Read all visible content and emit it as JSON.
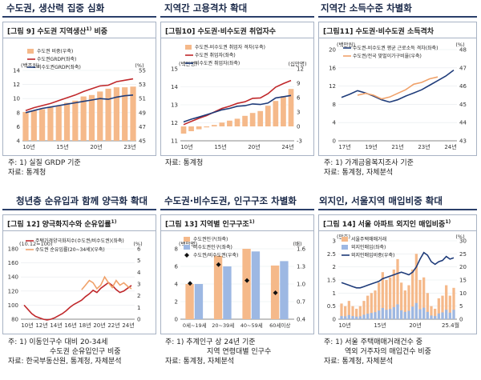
{
  "headings": [
    {
      "text": "수도권, 생산력 집중 심화"
    },
    {
      "text": "지역간 고용격차 확대"
    },
    {
      "text": "지역간 소득수준 차별화"
    },
    {
      "text": "청년층 순유입과 함께 양극화 확대"
    },
    {
      "text": "수도권·비수도권, 인구구조 차별화"
    },
    {
      "text": "외지인, 서울지역 매입비중 확대"
    }
  ],
  "panels": [
    {
      "title": "[그림 9] 수도권 지역생산",
      "title_sup": "1)",
      "title_suffix": " 비중"
    },
    {
      "title": "[그림10] 수도권·비수도권 취업자수",
      "title_sup": "",
      "title_suffix": ""
    },
    {
      "title": "[그림11] 수도권·비수도권 소득격차",
      "title_sup": "",
      "title_suffix": ""
    },
    {
      "title": "[그림 12] 양극화지수와 순유입률",
      "title_sup": "1)",
      "title_suffix": ""
    },
    {
      "title": "[그림 13] 지역별 인구구조",
      "title_sup": "1)",
      "title_suffix": ""
    },
    {
      "title": "[그림 14] 서울 아파트 외지인 매입비중",
      "title_sup": "1)",
      "title_suffix": ""
    }
  ],
  "notes": [
    [
      "주: 1) 실질 GRDP 기준",
      "자료: 통계청"
    ],
    [
      "자료: 통계청"
    ],
    [
      "주: 1) 가계금융복지조사 기준",
      "자료: 통계청, 자체분석"
    ],
    [
      "주: 1) 이동인구수 대비 20-34세",
      "수도권 순유입인구 비중",
      "자료: 한국부동산원, 통계청, 자체분석"
    ],
    [
      "주: 1) 추계인구 상 24년 기준",
      "지역 연령대별 인구수",
      "자료: 통계청, 자체분석"
    ],
    [
      "주: 1) 서울 주택매매거래건수 중",
      "역외 거주자의 매입건수 비중",
      "자료: 통계청, 자체분석"
    ]
  ],
  "chart_data": [
    {
      "type": "bar",
      "left_unit": "(백조원)",
      "right_unit": "(%)",
      "legend": [
        "수도권 비중(우축)",
        "수도권GRDP(좌축)",
        "비수도권GRDP(좌축)"
      ],
      "ylim_left": [
        4,
        14
      ],
      "yticks_left": [
        "4",
        "6",
        "8",
        "10",
        "12",
        "14"
      ],
      "ylim_right": [
        45,
        55
      ],
      "yticks_right": [
        "45",
        "47",
        "49",
        "51",
        "53",
        "55"
      ],
      "xticks": [
        "10년",
        "15년",
        "20년",
        "23년"
      ],
      "x": [
        2010,
        2011,
        2012,
        2013,
        2014,
        2015,
        2016,
        2017,
        2018,
        2019,
        2020,
        2021,
        2022,
        2023
      ],
      "series": [
        {
          "name": "수도권 비중(우축)",
          "axis": "right",
          "kind": "bar",
          "color": "#f5b98a",
          "values": [
            49.1,
            49.3,
            49.5,
            49.8,
            50.0,
            50.4,
            50.7,
            51.3,
            51.5,
            52.0,
            52.4,
            52.6,
            52.6,
            52.7
          ]
        },
        {
          "name": "수도권GRDP(좌축)",
          "axis": "left",
          "kind": "line",
          "color": "#c0282b",
          "values": [
            8.3,
            8.7,
            9.0,
            9.3,
            9.7,
            10.1,
            10.5,
            11.0,
            11.4,
            11.8,
            11.9,
            12.4,
            12.6,
            12.8
          ]
        },
        {
          "name": "비수도권GRDP(좌축)",
          "axis": "left",
          "kind": "line",
          "color": "#1f3c7a",
          "values": [
            8.0,
            8.3,
            8.6,
            8.8,
            9.0,
            9.2,
            9.4,
            9.6,
            9.8,
            10.0,
            9.9,
            10.2,
            10.4,
            10.5
          ]
        }
      ]
    },
    {
      "type": "line",
      "left_unit": "(백만명)",
      "right_unit": "(십만명)",
      "legend": [
        "수도권-비수도권 취업자 격차(우축)",
        "수도권 취업자(좌축)",
        "비수도권 취업자(좌축)"
      ],
      "ylim_left": [
        11,
        15
      ],
      "yticks_left": [
        "11",
        "12",
        "13",
        "14",
        "15"
      ],
      "ylim_right": [
        -3,
        12
      ],
      "yticks_right": [
        "-3",
        "0",
        "3",
        "6",
        "9",
        "12"
      ],
      "xticks": [
        "10년",
        "15년",
        "20년",
        "24년"
      ],
      "x": [
        2010,
        2011,
        2012,
        2013,
        2014,
        2015,
        2016,
        2017,
        2018,
        2019,
        2020,
        2021,
        2022,
        2023,
        2024
      ],
      "series": [
        {
          "name": "수도권-비수도권 취업자 격차(우축)",
          "axis": "right",
          "kind": "bar",
          "color": "#f5b98a",
          "values": [
            -1.5,
            -1.0,
            -0.6,
            -0.2,
            0.3,
            0.8,
            1.2,
            1.6,
            2.2,
            2.8,
            3.2,
            4.3,
            5.3,
            6.3,
            7.8
          ]
        },
        {
          "name": "수도권 취업자(좌축)",
          "axis": "left",
          "kind": "line",
          "color": "#c0282b",
          "values": [
            11.9,
            12.08,
            12.25,
            12.4,
            12.6,
            12.8,
            12.92,
            13.08,
            13.17,
            13.36,
            13.38,
            13.62,
            13.98,
            14.18,
            14.35
          ]
        },
        {
          "name": "비수도권 취업자(좌축)",
          "axis": "left",
          "kind": "line",
          "color": "#1f3c7a",
          "values": [
            12.05,
            12.2,
            12.32,
            12.45,
            12.58,
            12.72,
            12.8,
            12.92,
            12.95,
            13.05,
            13.02,
            13.1,
            13.38,
            13.45,
            13.52
          ]
        }
      ]
    },
    {
      "type": "line",
      "left_unit": "(백만원)",
      "right_unit": "(%)",
      "legend": [
        "수도권-비수도권 평균 근로소득 격차(좌축)",
        "수도권/전국 맞벌이가구비율(우축)"
      ],
      "ylim_left": [
        0,
        20
      ],
      "yticks_left": [
        "0",
        "4",
        "8",
        "12",
        "16",
        "20"
      ],
      "ylim_right": [
        43,
        48
      ],
      "yticks_right": [
        "43",
        "44",
        "45",
        "46",
        "47",
        "48"
      ],
      "xticks": [
        "17년",
        "19년",
        "21년",
        "23년",
        "24년"
      ],
      "x": [
        2017,
        2017.5,
        2018,
        2018.5,
        2019,
        2019.5,
        2020,
        2020.5,
        2021,
        2021.5,
        2022,
        2022.5,
        2023,
        2023.5,
        2024
      ],
      "series": [
        {
          "name": "수도권-비수도권 평균 근로소득 격차(좌축)",
          "axis": "left",
          "kind": "line",
          "color": "#1f3c7a",
          "values": [
            9.5,
            10.2,
            11.0,
            10.5,
            9.8,
            9.0,
            8.5,
            9.0,
            9.8,
            10.5,
            11.2,
            12.2,
            13.2,
            14.2,
            15.5
          ]
        },
        {
          "name": "수도권/전국 맞벌이가구비율(우축)",
          "axis": "right",
          "kind": "line",
          "color": "#f0a26a",
          "values": [
            null,
            null,
            45.5,
            45.6,
            45.5,
            45.3,
            45.4,
            45.6,
            45.8,
            46.1,
            46.2,
            46.4,
            46.5,
            null,
            null
          ]
        }
      ]
    },
    {
      "type": "line",
      "left_unit": "(10.12=100)",
      "right_unit": "(%)",
      "legend": [
        "주택가격양극화지수(수도권/비수도권)(좌축)",
        "수도권 순유입률(20~34세)(우축)"
      ],
      "ylim_left": [
        80,
        180
      ],
      "yticks_left": [
        "80",
        "100",
        "120",
        "140",
        "160",
        "180"
      ],
      "ylim_right": [
        0,
        6
      ],
      "yticks_right": [
        "0",
        "1",
        "2",
        "3",
        "4",
        "5",
        "6"
      ],
      "xticks": [
        "10년",
        "12년",
        "14년",
        "16년",
        "18년",
        "20년",
        "22년",
        "24년"
      ],
      "x": [
        2010,
        2010.5,
        2011,
        2011.5,
        2012,
        2012.5,
        2013,
        2013.5,
        2014,
        2014.5,
        2015,
        2015.5,
        2016,
        2016.5,
        2017,
        2017.5,
        2018,
        2018.5,
        2019,
        2019.5,
        2020,
        2020.5,
        2021,
        2021.5,
        2022,
        2022.5,
        2023,
        2023.5,
        2024
      ],
      "series": [
        {
          "name": "주택가격양극화지수(수도권/비수도권)(좌축)",
          "axis": "left",
          "kind": "line",
          "color": "#c0282b",
          "values": [
            100,
            94,
            88,
            84,
            82,
            80,
            79,
            80,
            82,
            85,
            88,
            92,
            97,
            101,
            104,
            107,
            112,
            116,
            121,
            118,
            124,
            128,
            132,
            128,
            122,
            118,
            120,
            124,
            128
          ]
        },
        {
          "name": "수도권 순유입률(20~34세)(우축)",
          "axis": "right",
          "kind": "line",
          "color": "#f0a26a",
          "values": [
            null,
            null,
            null,
            null,
            null,
            null,
            null,
            null,
            null,
            null,
            null,
            null,
            null,
            null,
            null,
            2.5,
            2.9,
            3.3,
            3.1,
            2.6,
            2.9,
            3.6,
            3.1,
            2.7,
            3.3,
            2.9,
            3.1,
            2.8,
            2.6
          ]
        }
      ]
    },
    {
      "type": "bar",
      "left_unit": "(백만명)",
      "right_unit": "(배)",
      "legend": [
        "수도권인구(좌축)",
        "비수도권인구(좌축)",
        "수도권/비수도권(우축)"
      ],
      "ylim_left": [
        0,
        8
      ],
      "yticks_left": [
        "0",
        "2",
        "4",
        "6",
        "8"
      ],
      "ylim_right": [
        0.4,
        1.6
      ],
      "yticks_right": [
        "0.4",
        "0.7",
        "1.0",
        "1.3",
        "1.6"
      ],
      "categories": [
        "0세~19세",
        "20~39세",
        "40~59세",
        "60세이상"
      ],
      "series": [
        {
          "name": "수도권인구(좌축)",
          "axis": "left",
          "kind": "bar",
          "color": "#f5b98a",
          "values": [
            4.0,
            7.2,
            8.0,
            6.1
          ]
        },
        {
          "name": "비수도권인구(좌축)",
          "axis": "left",
          "kind": "bar",
          "color": "#9db8e3",
          "values": [
            4.0,
            6.0,
            7.7,
            6.6
          ]
        },
        {
          "name": "수도권/비수도권(우축)",
          "axis": "right",
          "kind": "diamond",
          "color": "#111111",
          "values": [
            1.01,
            1.33,
            1.06,
            0.85
          ]
        }
      ]
    },
    {
      "type": "bar",
      "left_unit": "(만호)",
      "right_unit": "(%)",
      "legend": [
        "서울주택매매거래",
        "외지인매입(좌축)",
        "외지인매입비중(우축)"
      ],
      "ylim_left": [
        0,
        3
      ],
      "yticks_left": [
        "0",
        "0.5",
        "1",
        "1.5",
        "2",
        "2.5",
        "3"
      ],
      "ylim_right": [
        0,
        30
      ],
      "yticks_right": [
        "0",
        "5",
        "10",
        "15",
        "20",
        "25",
        "30"
      ],
      "xticks": [
        "10년",
        "15년",
        "20년",
        "25.4월"
      ],
      "x": [
        2010,
        2010.5,
        2011,
        2011.5,
        2012,
        2012.5,
        2013,
        2013.5,
        2014,
        2014.5,
        2015,
        2015.5,
        2016,
        2016.5,
        2017,
        2017.5,
        2018,
        2018.5,
        2019,
        2019.5,
        2020,
        2020.5,
        2021,
        2021.5,
        2022,
        2022.5,
        2023,
        2023.5,
        2024,
        2024.5,
        2025
      ],
      "series": [
        {
          "name": "서울주택매매거래",
          "axis": "left",
          "kind": "bar",
          "color": "#f5b98a",
          "values": [
            0.6,
            0.5,
            0.7,
            0.5,
            0.4,
            0.5,
            0.7,
            0.9,
            1.0,
            1.1,
            1.4,
            1.8,
            1.5,
            1.6,
            1.9,
            2.3,
            1.4,
            1.1,
            1.3,
            1.9,
            2.5,
            1.5,
            1.6,
            1.0,
            0.5,
            0.4,
            0.8,
            0.9,
            1.3,
            0.9,
            1.2
          ]
        },
        {
          "name": "외지인매입(좌축)",
          "axis": "left",
          "kind": "bar",
          "color": "#9db8e3",
          "values": [
            0.12,
            0.11,
            0.16,
            0.12,
            0.1,
            0.11,
            0.17,
            0.21,
            0.24,
            0.27,
            0.33,
            0.43,
            0.36,
            0.39,
            0.46,
            0.57,
            0.34,
            0.28,
            0.32,
            0.48,
            0.62,
            0.38,
            0.44,
            0.28,
            0.14,
            0.12,
            0.22,
            0.26,
            0.36,
            0.25,
            0.36
          ]
        },
        {
          "name": "외지인매입비중(우축)",
          "axis": "right",
          "kind": "line",
          "color": "#1f3c7a",
          "values": [
            14,
            13.5,
            13,
            12.5,
            12,
            12,
            12.5,
            13,
            13.5,
            14,
            14.5,
            15.5,
            16,
            16.5,
            17,
            17.5,
            18,
            17.5,
            17,
            18,
            20,
            23,
            25.5,
            24.5,
            22,
            21,
            22,
            22.5,
            24,
            23,
            23.5
          ]
        }
      ]
    }
  ]
}
